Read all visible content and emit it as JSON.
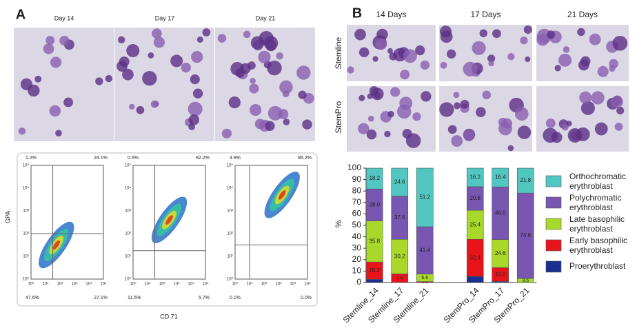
{
  "panel_labels": [
    "A",
    "B"
  ],
  "panel_a": {
    "days": [
      "Day 14",
      "Day 17",
      "Day 21"
    ],
    "flow": {
      "y_label": "GPA",
      "x_label": "CD 71",
      "ticks": [
        "10⁰",
        "10¹",
        "10²",
        "10³",
        "10⁴",
        "10⁵"
      ],
      "plots": [
        {
          "ul": "1.2%",
          "ur": "24.1%",
          "ll": "47.6%",
          "lr": "27.1%"
        },
        {
          "ul": "0.6%",
          "ur": "82.2%",
          "ll": "11.5%",
          "lr": "5.7%"
        },
        {
          "ul": "4.8%",
          "ur": "95.2%",
          "ll": "0.1%",
          "lr": "0.0%"
        }
      ]
    }
  },
  "panel_b": {
    "columns": [
      "14 Days",
      "17 Days",
      "21 Days"
    ],
    "rows": [
      "Stemline",
      "StemPro"
    ]
  },
  "chart_data": {
    "type": "stacked_bar",
    "y_label": "%",
    "categories": [
      "Stemline_14",
      "Stemline_17",
      "Stemline_21",
      null,
      "StemPro_14",
      "StemPro_17",
      "StemPro_21"
    ],
    "ylim": [
      0,
      100
    ],
    "yticks": [
      0,
      10,
      20,
      30,
      40,
      50,
      60,
      70,
      80,
      90,
      100
    ],
    "series": [
      {
        "name": "Proerythroblast",
        "color": "#1b2f8f",
        "values": [
          2.8,
          0,
          0,
          null,
          5.4,
          1.0,
          0
        ]
      },
      {
        "name": "Early basophilic erythroblast",
        "color": "#e8141c",
        "values": [
          15.2,
          7.6,
          0.8,
          null,
          32.4,
          12.0,
          0
        ],
        "value_labels": [
          "15.2",
          "7.6",
          "0.8",
          null,
          "32.4",
          "12.0",
          null
        ]
      },
      {
        "name": "Late basophilic erythroblast",
        "color": "#a8d92a",
        "values": [
          35.8,
          30.2,
          6.6,
          null,
          25.4,
          24.6,
          3.6
        ],
        "value_labels": [
          "35.8",
          "30.2",
          "6.6",
          null,
          "25.4",
          "24.6",
          "3.6"
        ]
      },
      {
        "name": "Polychromatic erythroblast",
        "color": "#7856b2",
        "values": [
          28.0,
          37.6,
          41.4,
          null,
          20.6,
          46.0,
          74.6
        ],
        "value_labels": [
          "28.0",
          "37.6",
          "41.4",
          null,
          "20.6",
          "46.0",
          "74.6"
        ]
      },
      {
        "name": "Orthochromatic erythroblast",
        "color": "#52c7c1",
        "values": [
          18.2,
          24.6,
          51.2,
          null,
          16.2,
          16.4,
          21.8
        ],
        "value_labels": [
          "18.2",
          "24.6",
          "51.2",
          null,
          "16.2",
          "16.4",
          "21.8"
        ]
      }
    ]
  }
}
